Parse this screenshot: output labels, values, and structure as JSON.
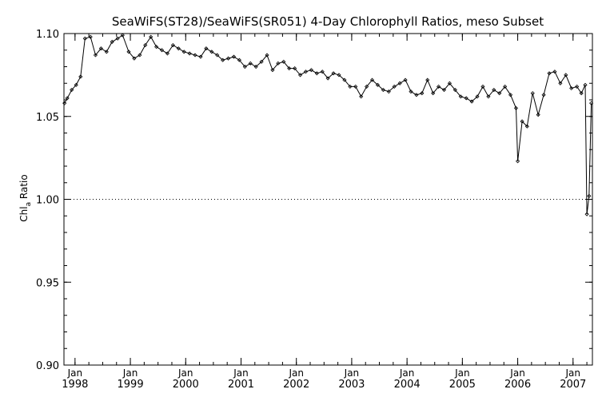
{
  "chart_data": {
    "type": "line",
    "title": "SeaWiFS(ST28)/SeaWiFS(SR051) 4-Day Chlorophyll Ratios, meso Subset",
    "ylabel_main": "Chl",
    "ylabel_sub": "a",
    "ylabel_rest": " Ratio",
    "xlabel": "",
    "xlim": [
      1997.8,
      2007.35
    ],
    "ylim": [
      0.9,
      1.1
    ],
    "yticks": [
      "0.90",
      "0.95",
      "1.00",
      "1.05",
      "1.10"
    ],
    "xticks": [
      {
        "month": "Jan",
        "year": "1998"
      },
      {
        "month": "Jan",
        "year": "1999"
      },
      {
        "month": "Jan",
        "year": "2000"
      },
      {
        "month": "Jan",
        "year": "2001"
      },
      {
        "month": "Jan",
        "year": "2002"
      },
      {
        "month": "Jan",
        "year": "2003"
      },
      {
        "month": "Jan",
        "year": "2004"
      },
      {
        "month": "Jan",
        "year": "2005"
      },
      {
        "month": "Jan",
        "year": "2006"
      },
      {
        "month": "Jan",
        "year": "2007"
      }
    ],
    "reference_line": {
      "y": 1.0,
      "style": "dotted"
    },
    "marker": "diamond",
    "series": [
      {
        "x": [
          1997.81,
          1997.86,
          1997.94,
          1998.02,
          1998.1,
          1998.18,
          1998.28,
          1998.37,
          1998.47,
          1998.57,
          1998.67,
          1998.77,
          1998.86,
          1998.97,
          1999.07,
          1999.17,
          1999.27,
          1999.37,
          1999.47,
          1999.57,
          1999.67,
          1999.77,
          1999.87,
          1999.97,
          2000.07,
          2000.17,
          2000.27,
          2000.37,
          2000.47,
          2000.57,
          2000.67,
          2000.77,
          2000.87,
          2000.97,
          2001.07,
          2001.17,
          2001.27,
          2001.37,
          2001.47,
          2001.57,
          2001.67,
          2001.77,
          2001.87,
          2001.97,
          2002.07,
          2002.17,
          2002.27,
          2002.37,
          2002.47,
          2002.57,
          2002.67,
          2002.77,
          2002.87,
          2002.97,
          2003.07,
          2003.17,
          2003.27,
          2003.37,
          2003.47,
          2003.57,
          2003.67,
          2003.77,
          2003.87,
          2003.97,
          2004.07,
          2004.17,
          2004.27,
          2004.37,
          2004.47,
          2004.57,
          2004.67,
          2004.77,
          2004.87,
          2004.97,
          2005.07,
          2005.17,
          2005.27,
          2005.37,
          2005.47,
          2005.57,
          2005.67,
          2005.77,
          2005.87,
          2005.97,
          2006.0,
          2006.08,
          2006.17,
          2006.27,
          2006.37,
          2006.47,
          2006.57,
          2006.67,
          2006.77,
          2006.87,
          2006.97,
          2007.07,
          2007.15,
          2007.22,
          2007.25,
          2007.29,
          2007.33
        ],
        "y": [
          1.058,
          1.061,
          1.066,
          1.069,
          1.074,
          1.097,
          1.098,
          1.087,
          1.091,
          1.089,
          1.095,
          1.097,
          1.099,
          1.089,
          1.085,
          1.087,
          1.093,
          1.098,
          1.092,
          1.09,
          1.088,
          1.093,
          1.091,
          1.089,
          1.088,
          1.087,
          1.086,
          1.091,
          1.089,
          1.087,
          1.084,
          1.085,
          1.086,
          1.084,
          1.08,
          1.082,
          1.08,
          1.083,
          1.087,
          1.078,
          1.082,
          1.083,
          1.079,
          1.079,
          1.075,
          1.077,
          1.078,
          1.076,
          1.077,
          1.073,
          1.076,
          1.075,
          1.072,
          1.068,
          1.068,
          1.062,
          1.068,
          1.072,
          1.069,
          1.066,
          1.065,
          1.068,
          1.07,
          1.072,
          1.065,
          1.063,
          1.064,
          1.072,
          1.064,
          1.068,
          1.066,
          1.07,
          1.066,
          1.062,
          1.061,
          1.059,
          1.062,
          1.068,
          1.062,
          1.066,
          1.064,
          1.068,
          1.063,
          1.055,
          1.023,
          1.047,
          1.044,
          1.064,
          1.051,
          1.063,
          1.076,
          1.077,
          1.07,
          1.075,
          1.067,
          1.068,
          1.064,
          1.069,
          0.991,
          1.002,
          1.058
        ]
      }
    ]
  }
}
